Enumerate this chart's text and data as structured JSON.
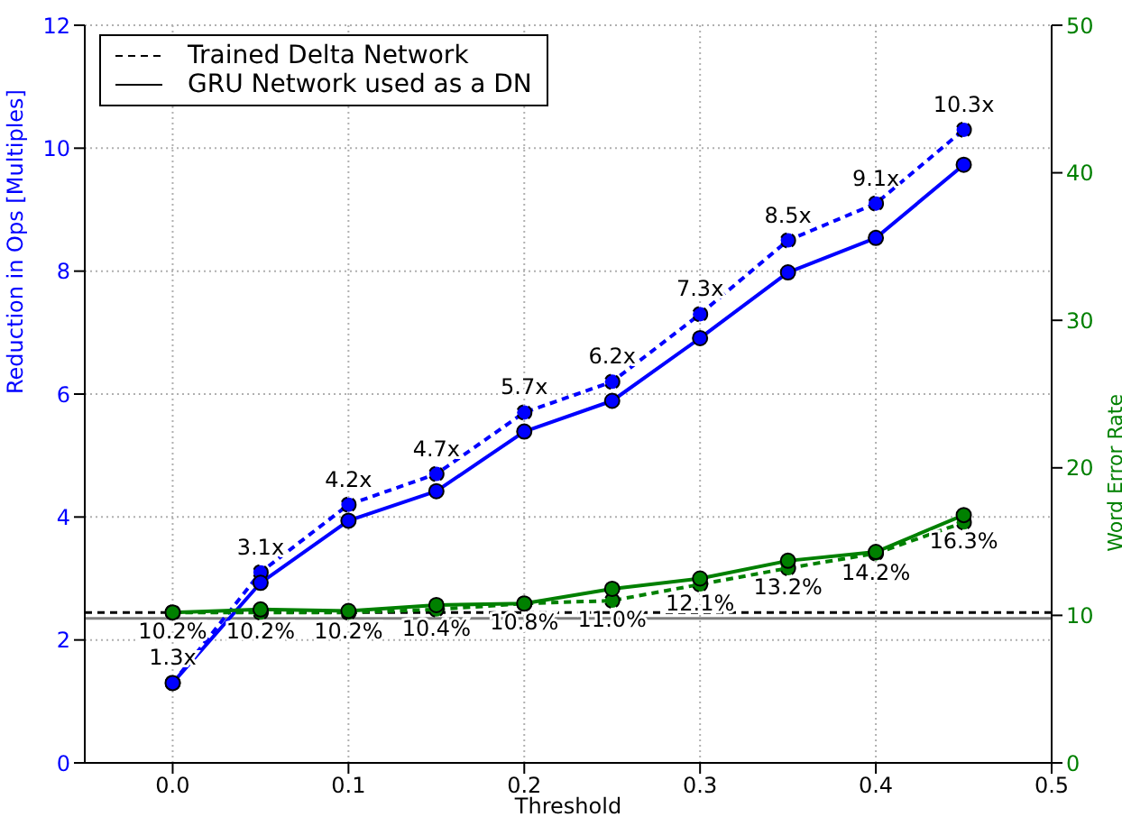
{
  "chart_data": {
    "type": "line",
    "xlabel": "Threshold",
    "ylabel": "Reduction in Ops [Multiples]",
    "y2label": "Word Error Rate",
    "x": [
      0,
      0.05,
      0.1,
      0.15,
      0.2,
      0.25,
      0.3,
      0.35,
      0.4,
      0.45
    ],
    "series": [
      {
        "name": "Trained Delta Network",
        "color": "#0000ff",
        "line_style": "dashed",
        "values": [
          1.3,
          3.1,
          4.2,
          4.7,
          5.7,
          6.2,
          7.3,
          8.5,
          9.1,
          10.3
        ],
        "value_labels": [
          "1.3x",
          "3.1x",
          "4.2x",
          "4.7x",
          "5.7x",
          "6.2x",
          "7.3x",
          "8.5x",
          "9.1x",
          "10.3x"
        ]
      },
      {
        "name": "GRU Network used as a DN",
        "color": "#0000ff",
        "line_style": "solid",
        "values": [
          1.3,
          2.93,
          3.94,
          4.42,
          5.39,
          5.89,
          6.91,
          7.98,
          8.54,
          9.73
        ]
      },
      {
        "color": "#008000",
        "line_style": "dashed",
        "axis": "y2",
        "values": [
          10.2,
          10.2,
          10.2,
          10.4,
          10.8,
          11.0,
          12.1,
          13.2,
          14.2,
          16.3
        ],
        "value_labels": [
          "10.2%",
          "10.2%",
          "10.2%",
          "10.4%",
          "10.8%",
          "11.0%",
          "12.1%",
          "13.2%",
          "14.2%",
          "16.3%"
        ]
      },
      {
        "color": "#008000",
        "line_style": "solid",
        "axis": "y2",
        "values": [
          10.2,
          10.4,
          10.3,
          10.7,
          10.8,
          11.8,
          12.5,
          13.7,
          14.3,
          16.8
        ]
      }
    ],
    "xlim": [
      -0.05,
      0.5
    ],
    "xticks": [
      {
        "value": 0,
        "label": "0.0"
      },
      {
        "value": 0.1,
        "label": "0.1"
      },
      {
        "value": 0.2,
        "label": "0.2"
      },
      {
        "value": 0.3,
        "label": "0.3"
      },
      {
        "value": 0.4,
        "label": "0.4"
      },
      {
        "value": 0.5,
        "label": "0.5"
      }
    ],
    "ylim": [
      0,
      12
    ],
    "yticks": [
      0,
      2,
      4,
      6,
      8,
      10,
      12
    ],
    "y2lim": [
      0,
      50
    ],
    "y2ticks": [
      0,
      10,
      20,
      30,
      40,
      50
    ],
    "ref_lines": [
      {
        "axis": "y2",
        "value": 10.2,
        "color": "#000000",
        "line_style": "dashed"
      },
      {
        "axis": "y2",
        "value": 9.8,
        "color": "#808080",
        "line_style": "solid"
      }
    ],
    "marker": "circle",
    "grid": true,
    "legend": "top left"
  }
}
